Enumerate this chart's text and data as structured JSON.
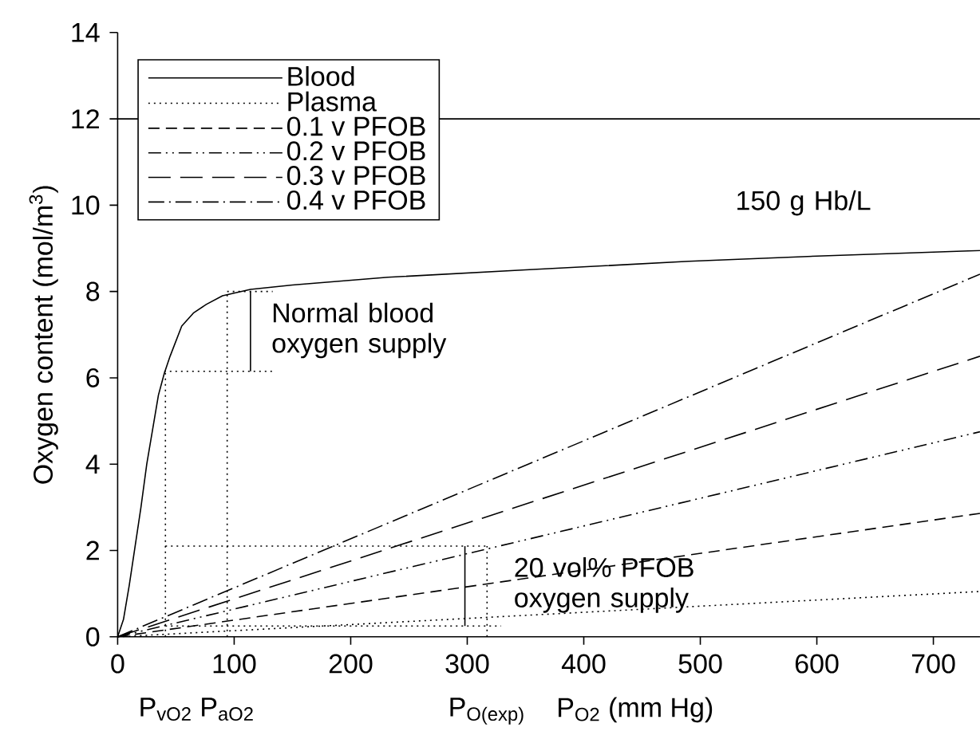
{
  "chart_data": {
    "type": "line",
    "xlabel": "P$_{O2}$ (mm Hg)",
    "ylabel": "Oxygen content (mol/m$^{3}$)",
    "xlim": [
      0,
      740
    ],
    "ylim": [
      0,
      14
    ],
    "xticks": [
      0,
      100,
      200,
      300,
      400,
      500,
      600,
      700
    ],
    "yticks": [
      0,
      2,
      4,
      6,
      8,
      10,
      12,
      14
    ],
    "legend": "top left",
    "series": [
      {
        "name": "Blood",
        "color": "#000000",
        "line_style": "solid",
        "x": [
          0,
          5,
          10,
          15,
          20,
          25,
          30,
          35,
          40,
          45,
          55,
          65,
          76,
          90,
          114,
          150,
          232,
          350,
          490,
          600,
          740
        ],
        "values": [
          0,
          0.4,
          1.2,
          2.1,
          3.0,
          4.0,
          4.8,
          5.6,
          6.1,
          6.5,
          7.2,
          7.5,
          7.7,
          7.9,
          8.05,
          8.15,
          8.33,
          8.5,
          8.7,
          8.82,
          8.95
        ]
      },
      {
        "name": "Plasma",
        "color": "#000000",
        "line_style": "dotted",
        "x": [
          0,
          740
        ],
        "values": [
          0,
          1.05
        ]
      },
      {
        "name": "0.1 v PFOB",
        "color": "#000000",
        "line_style": "dashed",
        "x": [
          0,
          740
        ],
        "values": [
          0,
          2.86
        ]
      },
      {
        "name": "0.2 v PFOB",
        "color": "#000000",
        "line_style": "dashdotdot",
        "x": [
          0,
          740
        ],
        "values": [
          0,
          4.75
        ]
      },
      {
        "name": "0.3 v PFOB",
        "color": "#000000",
        "line_style": "longdash",
        "x": [
          0,
          740
        ],
        "values": [
          0,
          6.5
        ]
      },
      {
        "name": "0.4 v PFOB",
        "color": "#000000",
        "line_style": "dashdot",
        "x": [
          0,
          740
        ],
        "values": [
          0,
          8.4
        ]
      },
      {
        "color": "#000000",
        "line_style": "dotted",
        "x": [
          41,
          41
        ],
        "values": [
          0,
          6.15
        ]
      },
      {
        "color": "#000000",
        "line_style": "dotted",
        "x": [
          40,
          133
        ],
        "values": [
          6.15,
          6.15
        ]
      },
      {
        "color": "#000000",
        "line_style": "dotted",
        "x": [
          94,
          94
        ],
        "values": [
          0,
          8.0
        ]
      },
      {
        "color": "#000000",
        "line_style": "dotted",
        "x": [
          94,
          133
        ],
        "values": [
          8.0,
          8.0
        ]
      },
      {
        "color": "#000000",
        "line_style": "dotted",
        "x": [
          41,
          317
        ],
        "values": [
          2.1,
          2.1
        ]
      },
      {
        "color": "#000000",
        "line_style": "dotted",
        "x": [
          317,
          317
        ],
        "values": [
          0,
          2.1
        ]
      },
      {
        "color": "#000000",
        "line_style": "dotted",
        "x": [
          41,
          329
        ],
        "values": [
          0.25,
          0.25
        ]
      },
      {
        "color": "#000000",
        "line_style": "solid",
        "x": [
          114,
          114
        ],
        "values": [
          6.15,
          8.0
        ]
      },
      {
        "color": "#000000",
        "line_style": "solid",
        "x": [
          298,
          298
        ],
        "values": [
          0.25,
          2.1
        ]
      }
    ],
    "ref_lines": [
      {
        "axis": "y",
        "value": 12,
        "color": "#000000",
        "line_style": "solid"
      }
    ],
    "annotations": [
      "150 g Hb/L",
      "Normal blood oxygen supply",
      "20 vol% PFOB oxygen supply",
      "P$_{vO2}$",
      "P$_{aO2}$",
      "P$_{O(exp)}$"
    ]
  }
}
